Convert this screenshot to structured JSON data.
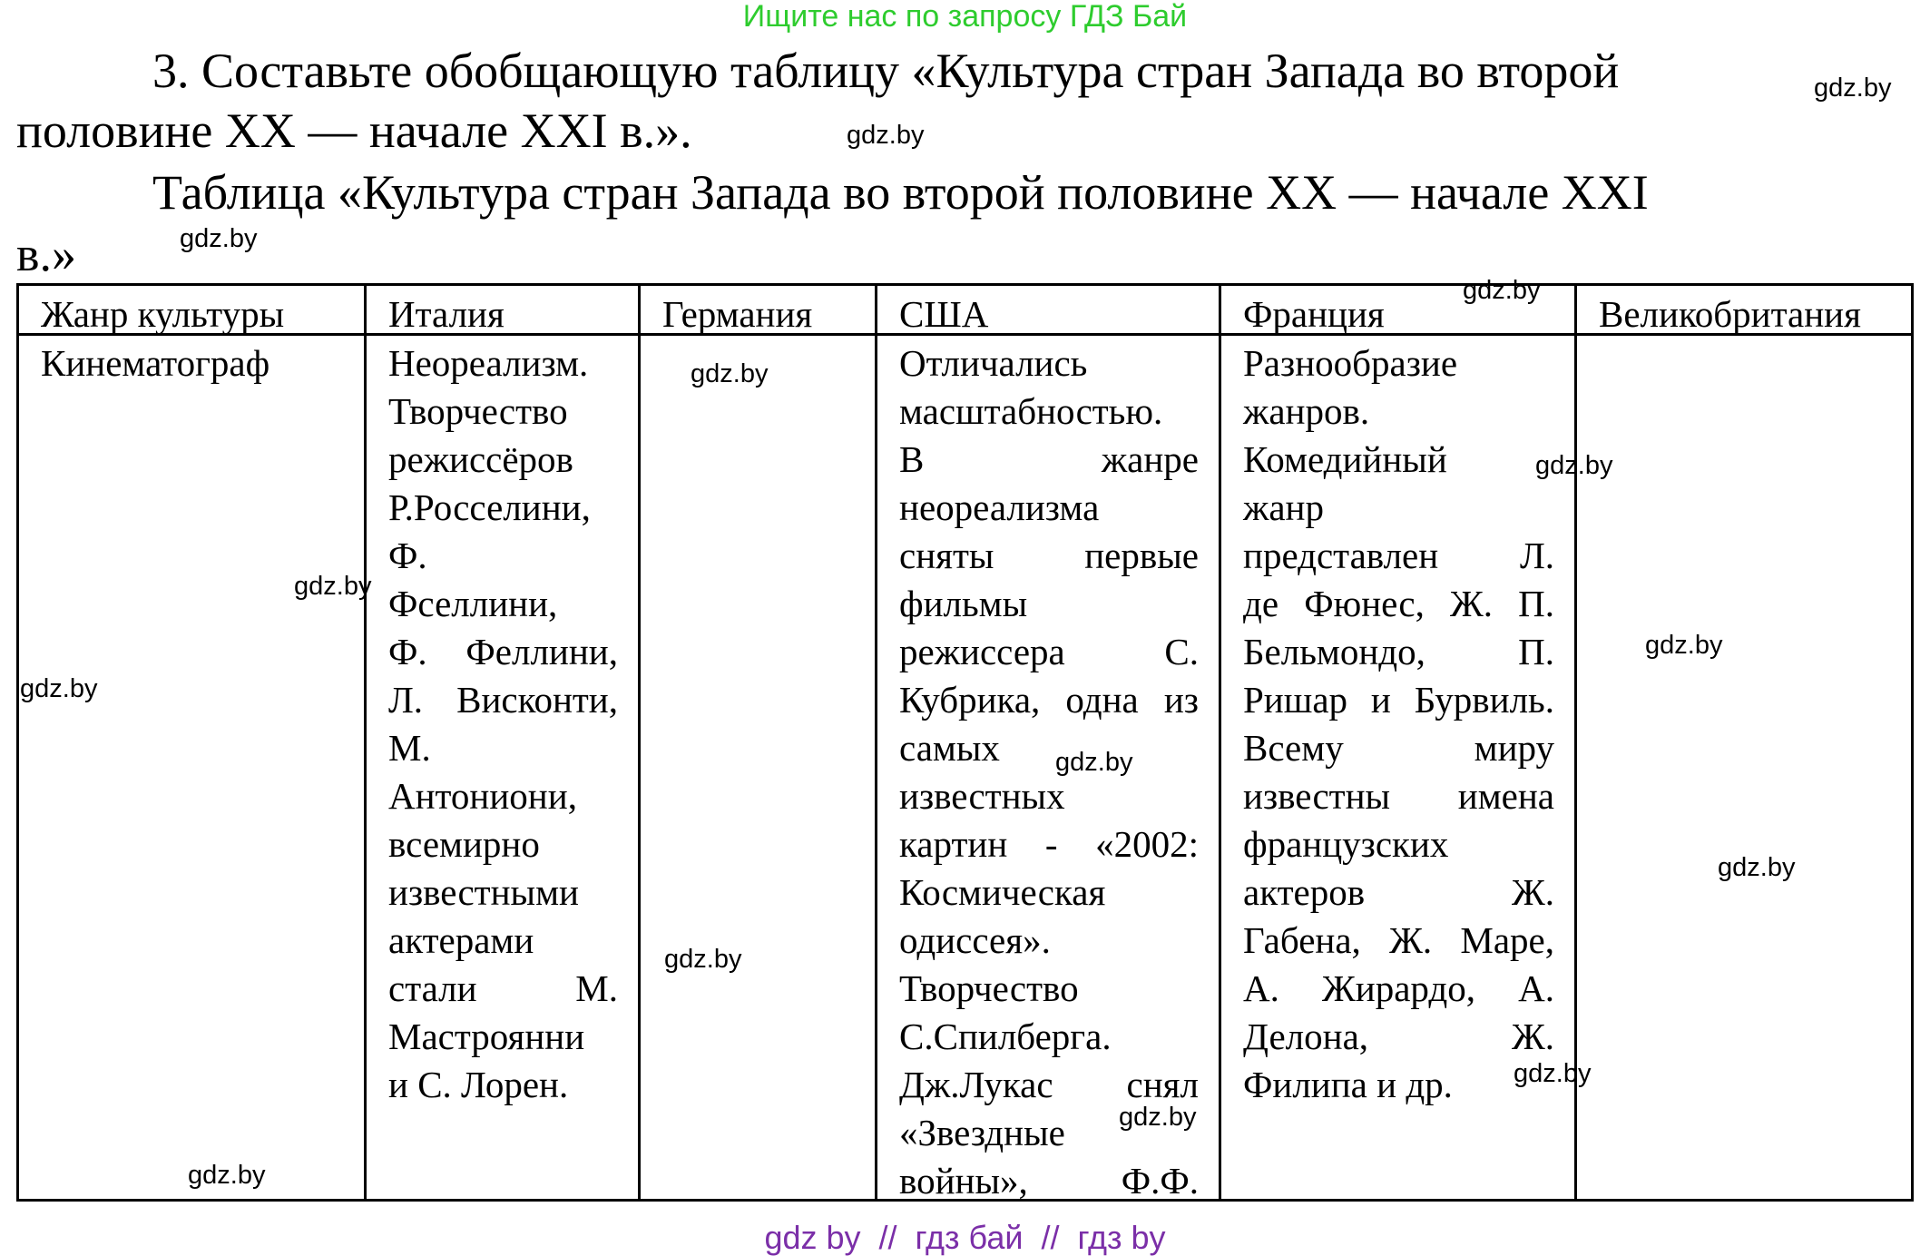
{
  "top_note": "Ищите нас по запросу ГДЗ Бай",
  "task": {
    "line1": "3. Составьте обобщающую таблицу «Культура стран Запада во второй",
    "line2": "половине XX — начале XXI в.»."
  },
  "table_title": {
    "line1": "Таблица «Культура стран Запада во второй половине XX — начале XXI",
    "line2": "в.»"
  },
  "table": {
    "headers": [
      "Жанр культуры",
      "Италия",
      "Германия",
      "США",
      "Франция",
      "Великобритания"
    ],
    "row": {
      "genre": [
        "Кинематограф"
      ],
      "italy": [
        "Неореализм.",
        "Творчество",
        "режиссёров",
        "Р.Росселини,",
        "Ф.",
        "Фселлини,",
        "Ф. Феллини,",
        "Л. Висконти,",
        "М.",
        "Антониони,",
        "всемирно",
        "известными",
        "актерами",
        "стали М.",
        "Мастроянни",
        "и С. Лорен."
      ],
      "germany": [],
      "usa": [
        "Отличались",
        "масштабностью.",
        "В жанре",
        "неореализма",
        "сняты первые",
        "фильмы",
        "режиссера С.",
        "Кубрика, одна из",
        "самых",
        "известных",
        "картин - «2002:",
        "Космическая",
        "одиссея».",
        "Творчество",
        "С.Спилберга.",
        "Дж.Лукас снял",
        "«Звездные",
        "войны», Ф.Ф."
      ],
      "france": [
        "Разнообразие",
        "жанров.",
        "Комедийный",
        "жанр",
        "представлен Л.",
        "де Фюнес, Ж. П.",
        "Бельмондо, П.",
        "Ришар и Бурвиль.",
        "Всему миру",
        "известны имена",
        "французских",
        "актеров Ж.",
        "Габена, Ж. Маре,",
        "А. Жирардо, А.",
        "Делона, Ж.",
        "Филипа и др."
      ],
      "britain": []
    }
  },
  "watermark": "gdz.by",
  "footer": "gdz by  //  гдз бай  //  гдз by",
  "colors": {
    "top_note": "#2ecc2e",
    "footer": "#7b2fa8"
  }
}
